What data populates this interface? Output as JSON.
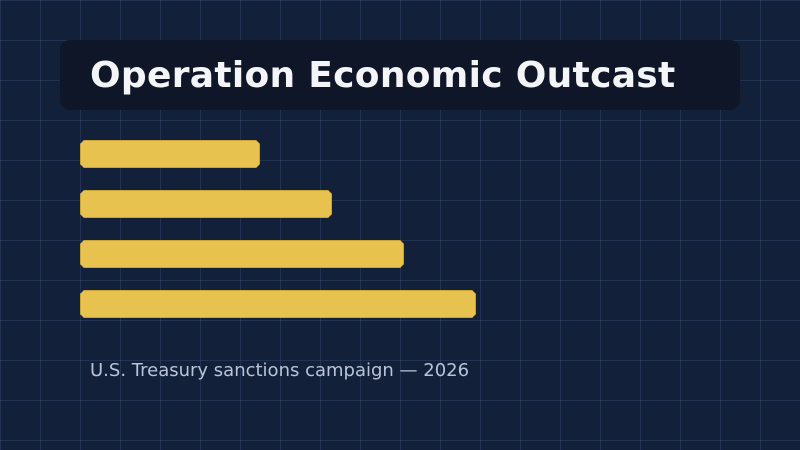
{
  "title": "Operation Economic Outcast",
  "caption": "U.S. Treasury sanctions campaign — 2026",
  "colors": {
    "background": "#13203a",
    "banner": "#0e1628",
    "bar_fill": "#e8c24e",
    "title_text": "#f4f5f8",
    "caption_text": "#b9c4d8"
  },
  "bar_levels": [
    0.25,
    0.35,
    0.45,
    0.55
  ]
}
